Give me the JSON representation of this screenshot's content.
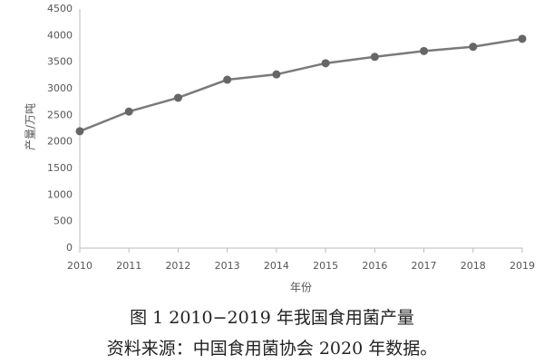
{
  "chart_data": {
    "type": "line",
    "title": "图 1  2010−2019 年我国食用菌产量",
    "source": "资料来源：中国食用菌协会 2020 年数据。",
    "x_label": "年份",
    "y_label": "产量/万吨",
    "categories": [
      "2010",
      "2011",
      "2012",
      "2013",
      "2014",
      "2015",
      "2016",
      "2017",
      "2018",
      "2019"
    ],
    "series": [
      {
        "name": "产量",
        "color": "#7a7a7a",
        "values": [
          2200,
          2570,
          2830,
          3170,
          3270,
          3480,
          3600,
          3710,
          3790,
          3940
        ]
      }
    ],
    "ylim": [
      0,
      4500
    ],
    "yticks": [
      0,
      500,
      1000,
      1500,
      2000,
      2500,
      3000,
      3500,
      4000,
      4500
    ],
    "grid": false
  }
}
